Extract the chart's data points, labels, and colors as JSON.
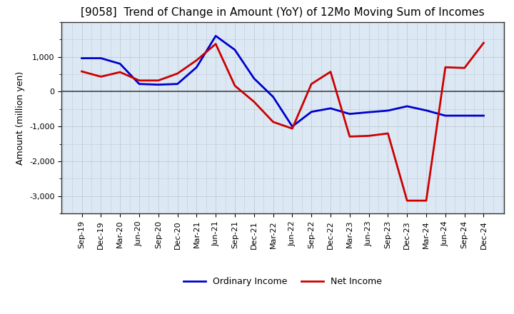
{
  "title": "[9058]  Trend of Change in Amount (YoY) of 12Mo Moving Sum of Incomes",
  "ylabel": "Amount (million yen)",
  "x_labels": [
    "Sep-19",
    "Dec-19",
    "Mar-20",
    "Jun-20",
    "Sep-20",
    "Dec-20",
    "Mar-21",
    "Jun-21",
    "Sep-21",
    "Dec-21",
    "Mar-22",
    "Jun-22",
    "Sep-22",
    "Dec-22",
    "Mar-23",
    "Jun-23",
    "Sep-23",
    "Dec-23",
    "Mar-24",
    "Jun-24",
    "Sep-24",
    "Dec-24"
  ],
  "ordinary_income": [
    960,
    960,
    800,
    220,
    200,
    220,
    700,
    1600,
    1200,
    380,
    -150,
    -1000,
    -580,
    -480,
    -640,
    -590,
    -545,
    -420,
    -540,
    -690,
    -690,
    -690
  ],
  "net_income": [
    580,
    430,
    560,
    320,
    320,
    520,
    900,
    1370,
    170,
    -290,
    -870,
    -1060,
    220,
    570,
    -1290,
    -1270,
    -1200,
    -3130,
    -3130,
    700,
    680,
    1400
  ],
  "ordinary_color": "#0000cc",
  "net_color": "#cc0000",
  "background_color": "#ffffff",
  "plot_bg_color": "#dce9f5",
  "grid_color": "#999999",
  "ylim": [
    -3500,
    2000
  ],
  "yticks": [
    -3000,
    -2000,
    -1000,
    0,
    1000
  ],
  "line_width": 2.0,
  "legend_labels": [
    "Ordinary Income",
    "Net Income"
  ],
  "title_fontsize": 11,
  "axis_fontsize": 8,
  "ylabel_fontsize": 9
}
